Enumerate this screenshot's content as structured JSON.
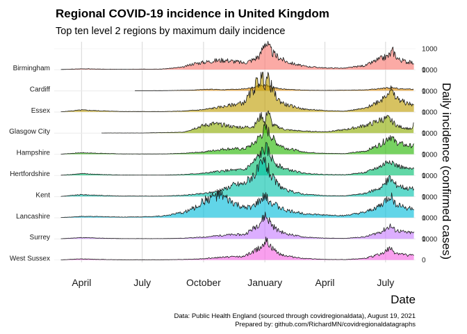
{
  "chart_data": {
    "type": "ridgeline",
    "title": "Regional COVID-19 incidence in United Kingdom",
    "subtitle": "Top ten level 2 regions by maximum daily incidence",
    "xlabel": "Date",
    "ylabel": "Daily incidence (confirmed cases)",
    "x_range": [
      "2020-02-20",
      "2021-08-15"
    ],
    "x_ticks": [
      {
        "date": "2020-04-01",
        "label": "April"
      },
      {
        "date": "2020-07-01",
        "label": "July"
      },
      {
        "date": "2020-10-01",
        "label": "October"
      },
      {
        "date": "2021-01-01",
        "label": "January"
      },
      {
        "date": "2021-04-01",
        "label": "April"
      },
      {
        "date": "2021-07-01",
        "label": "July"
      }
    ],
    "y_ticks": [
      0,
      1000
    ],
    "y_per_row_max": 1600,
    "grid": true,
    "series": [
      {
        "name": "Birmingham",
        "color": "#F8766D",
        "start": "2020-03-01",
        "points": [
          [
            "2020-03-01",
            5
          ],
          [
            "2020-04-05",
            40
          ],
          [
            "2020-05-01",
            20
          ],
          [
            "2020-06-01",
            15
          ],
          [
            "2020-07-01",
            20
          ],
          [
            "2020-08-01",
            30
          ],
          [
            "2020-09-01",
            120
          ],
          [
            "2020-09-15",
            280
          ],
          [
            "2020-10-01",
            350
          ],
          [
            "2020-10-15",
            420
          ],
          [
            "2020-11-01",
            460
          ],
          [
            "2020-11-15",
            400
          ],
          [
            "2020-12-01",
            320
          ],
          [
            "2020-12-15",
            480
          ],
          [
            "2020-12-25",
            700
          ],
          [
            "2021-01-01",
            1380
          ],
          [
            "2021-01-08",
            1000
          ],
          [
            "2021-01-15",
            720
          ],
          [
            "2021-02-01",
            400
          ],
          [
            "2021-02-15",
            260
          ],
          [
            "2021-03-01",
            160
          ],
          [
            "2021-04-01",
            80
          ],
          [
            "2021-05-01",
            70
          ],
          [
            "2021-06-01",
            200
          ],
          [
            "2021-06-20",
            480
          ],
          [
            "2021-07-05",
            650
          ],
          [
            "2021-07-12",
            900
          ],
          [
            "2021-07-20",
            500
          ],
          [
            "2021-08-01",
            380
          ],
          [
            "2021-08-13",
            320
          ]
        ]
      },
      {
        "name": "Cardiff",
        "color": "#E18A00",
        "start": "2020-06-20",
        "points": [
          [
            "2020-06-20",
            3
          ],
          [
            "2020-08-01",
            5
          ],
          [
            "2020-09-15",
            30
          ],
          [
            "2020-10-01",
            60
          ],
          [
            "2020-10-15",
            70
          ],
          [
            "2020-11-01",
            50
          ],
          [
            "2020-12-01",
            90
          ],
          [
            "2020-12-15",
            160
          ],
          [
            "2020-12-25",
            220
          ],
          [
            "2021-01-01",
            260
          ],
          [
            "2021-01-15",
            140
          ],
          [
            "2021-02-01",
            70
          ],
          [
            "2021-03-01",
            30
          ],
          [
            "2021-04-01",
            15
          ],
          [
            "2021-06-01",
            40
          ],
          [
            "2021-07-10",
            150
          ],
          [
            "2021-07-25",
            90
          ],
          [
            "2021-08-13",
            70
          ]
        ]
      },
      {
        "name": "Essex",
        "color": "#BE9C00",
        "start": "2020-03-01",
        "points": [
          [
            "2020-03-01",
            5
          ],
          [
            "2020-04-01",
            90
          ],
          [
            "2020-05-01",
            50
          ],
          [
            "2020-06-01",
            20
          ],
          [
            "2020-08-01",
            15
          ],
          [
            "2020-09-01",
            40
          ],
          [
            "2020-10-01",
            110
          ],
          [
            "2020-11-01",
            260
          ],
          [
            "2020-11-15",
            350
          ],
          [
            "2020-12-01",
            450
          ],
          [
            "2020-12-15",
            1100
          ],
          [
            "2020-12-22",
            1500
          ],
          [
            "2020-12-28",
            1700
          ],
          [
            "2021-01-01",
            1400
          ],
          [
            "2021-01-05",
            1700
          ],
          [
            "2021-01-12",
            1100
          ],
          [
            "2021-01-20",
            600
          ],
          [
            "2021-02-01",
            350
          ],
          [
            "2021-03-01",
            130
          ],
          [
            "2021-04-01",
            60
          ],
          [
            "2021-05-01",
            40
          ],
          [
            "2021-06-01",
            170
          ],
          [
            "2021-06-25",
            600
          ],
          [
            "2021-07-08",
            1100
          ],
          [
            "2021-07-15",
            700
          ],
          [
            "2021-08-01",
            420
          ],
          [
            "2021-08-13",
            330
          ]
        ]
      },
      {
        "name": "Glasgow City",
        "color": "#8CAB00",
        "start": "2020-05-01",
        "points": [
          [
            "2020-05-01",
            5
          ],
          [
            "2020-07-01",
            5
          ],
          [
            "2020-09-01",
            40
          ],
          [
            "2020-09-20",
            260
          ],
          [
            "2020-10-01",
            360
          ],
          [
            "2020-10-15",
            450
          ],
          [
            "2020-11-01",
            380
          ],
          [
            "2020-11-15",
            300
          ],
          [
            "2020-12-01",
            280
          ],
          [
            "2020-12-15",
            320
          ],
          [
            "2020-12-28",
            900
          ],
          [
            "2021-01-01",
            400
          ],
          [
            "2021-01-05",
            1200
          ],
          [
            "2021-01-12",
            400
          ],
          [
            "2021-02-01",
            160
          ],
          [
            "2021-03-01",
            90
          ],
          [
            "2021-04-01",
            60
          ],
          [
            "2021-05-01",
            160
          ],
          [
            "2021-05-25",
            320
          ],
          [
            "2021-06-10",
            450
          ],
          [
            "2021-06-25",
            650
          ],
          [
            "2021-07-05",
            700
          ],
          [
            "2021-07-20",
            320
          ],
          [
            "2021-08-10",
            180
          ],
          [
            "2021-08-13",
            550
          ]
        ]
      },
      {
        "name": "Hampshire",
        "color": "#24B700",
        "start": "2020-03-01",
        "points": [
          [
            "2020-03-01",
            5
          ],
          [
            "2020-04-01",
            70
          ],
          [
            "2020-05-01",
            40
          ],
          [
            "2020-06-01",
            15
          ],
          [
            "2020-08-01",
            15
          ],
          [
            "2020-09-01",
            40
          ],
          [
            "2020-10-01",
            110
          ],
          [
            "2020-11-01",
            250
          ],
          [
            "2020-11-15",
            260
          ],
          [
            "2020-12-01",
            250
          ],
          [
            "2020-12-15",
            500
          ],
          [
            "2020-12-28",
            1000
          ],
          [
            "2021-01-01",
            1250
          ],
          [
            "2021-01-05",
            1150
          ],
          [
            "2021-01-12",
            800
          ],
          [
            "2021-01-20",
            500
          ],
          [
            "2021-02-01",
            300
          ],
          [
            "2021-03-01",
            100
          ],
          [
            "2021-04-01",
            40
          ],
          [
            "2021-05-01",
            30
          ],
          [
            "2021-06-01",
            150
          ],
          [
            "2021-06-25",
            500
          ],
          [
            "2021-07-08",
            900
          ],
          [
            "2021-07-15",
            600
          ],
          [
            "2021-08-01",
            420
          ],
          [
            "2021-08-13",
            400
          ]
        ]
      },
      {
        "name": "Hertfordshire",
        "color": "#00BE70",
        "start": "2020-03-01",
        "points": [
          [
            "2020-03-01",
            5
          ],
          [
            "2020-04-01",
            80
          ],
          [
            "2020-05-01",
            40
          ],
          [
            "2020-06-01",
            15
          ],
          [
            "2020-08-01",
            15
          ],
          [
            "2020-09-01",
            40
          ],
          [
            "2020-10-01",
            100
          ],
          [
            "2020-11-01",
            220
          ],
          [
            "2020-11-15",
            250
          ],
          [
            "2020-12-01",
            260
          ],
          [
            "2020-12-15",
            620
          ],
          [
            "2020-12-25",
            1000
          ],
          [
            "2021-01-01",
            1300
          ],
          [
            "2021-01-05",
            1200
          ],
          [
            "2021-01-12",
            800
          ],
          [
            "2021-01-20",
            500
          ],
          [
            "2021-02-01",
            300
          ],
          [
            "2021-03-01",
            100
          ],
          [
            "2021-04-01",
            40
          ],
          [
            "2021-05-01",
            30
          ],
          [
            "2021-06-01",
            140
          ],
          [
            "2021-06-25",
            450
          ],
          [
            "2021-07-08",
            750
          ],
          [
            "2021-07-15",
            500
          ],
          [
            "2021-08-01",
            320
          ],
          [
            "2021-08-13",
            290
          ]
        ]
      },
      {
        "name": "Kent",
        "color": "#00C1AB",
        "start": "2020-03-01",
        "points": [
          [
            "2020-03-01",
            5
          ],
          [
            "2020-04-01",
            90
          ],
          [
            "2020-05-01",
            50
          ],
          [
            "2020-06-01",
            20
          ],
          [
            "2020-08-01",
            20
          ],
          [
            "2020-09-01",
            60
          ],
          [
            "2020-10-01",
            140
          ],
          [
            "2020-10-20",
            240
          ],
          [
            "2020-11-01",
            360
          ],
          [
            "2020-11-15",
            560
          ],
          [
            "2020-12-01",
            620
          ],
          [
            "2020-12-10",
            900
          ],
          [
            "2020-12-20",
            1200
          ],
          [
            "2020-12-28",
            1500
          ],
          [
            "2021-01-01",
            1700
          ],
          [
            "2021-01-06",
            1300
          ],
          [
            "2021-01-12",
            900
          ],
          [
            "2021-01-20",
            600
          ],
          [
            "2021-02-01",
            300
          ],
          [
            "2021-03-01",
            110
          ],
          [
            "2021-04-01",
            40
          ],
          [
            "2021-05-01",
            30
          ],
          [
            "2021-06-01",
            150
          ],
          [
            "2021-06-25",
            450
          ],
          [
            "2021-07-08",
            900
          ],
          [
            "2021-07-15",
            600
          ],
          [
            "2021-08-01",
            400
          ],
          [
            "2021-08-13",
            380
          ]
        ]
      },
      {
        "name": "Lancashire",
        "color": "#00BBDA",
        "start": "2020-03-01",
        "points": [
          [
            "2020-03-01",
            5
          ],
          [
            "2020-04-01",
            60
          ],
          [
            "2020-05-01",
            50
          ],
          [
            "2020-06-01",
            30
          ],
          [
            "2020-07-01",
            40
          ],
          [
            "2020-08-01",
            80
          ],
          [
            "2020-09-01",
            250
          ],
          [
            "2020-09-20",
            500
          ],
          [
            "2020-10-01",
            800
          ],
          [
            "2020-10-15",
            1000
          ],
          [
            "2020-10-25",
            1100
          ],
          [
            "2020-11-01",
            950
          ],
          [
            "2020-11-15",
            700
          ],
          [
            "2020-12-01",
            450
          ],
          [
            "2020-12-15",
            550
          ],
          [
            "2020-12-28",
            900
          ],
          [
            "2021-01-01",
            1000
          ],
          [
            "2021-01-08",
            800
          ],
          [
            "2021-01-20",
            550
          ],
          [
            "2021-02-01",
            350
          ],
          [
            "2021-03-01",
            200
          ],
          [
            "2021-04-01",
            120
          ],
          [
            "2021-05-01",
            100
          ],
          [
            "2021-06-01",
            250
          ],
          [
            "2021-06-25",
            600
          ],
          [
            "2021-07-08",
            1050
          ],
          [
            "2021-07-15",
            700
          ],
          [
            "2021-08-01",
            460
          ],
          [
            "2021-08-13",
            460
          ]
        ]
      },
      {
        "name": "Surrey",
        "color": "#C77CFF",
        "start": "2020-03-01",
        "points": [
          [
            "2020-03-01",
            5
          ],
          [
            "2020-04-01",
            60
          ],
          [
            "2020-05-01",
            30
          ],
          [
            "2020-06-01",
            10
          ],
          [
            "2020-08-01",
            10
          ],
          [
            "2020-09-01",
            30
          ],
          [
            "2020-10-01",
            80
          ],
          [
            "2020-11-01",
            180
          ],
          [
            "2020-11-15",
            200
          ],
          [
            "2020-12-01",
            200
          ],
          [
            "2020-12-15",
            500
          ],
          [
            "2020-12-28",
            900
          ],
          [
            "2021-01-01",
            1150
          ],
          [
            "2021-01-06",
            950
          ],
          [
            "2021-01-12",
            650
          ],
          [
            "2021-01-20",
            420
          ],
          [
            "2021-02-01",
            250
          ],
          [
            "2021-03-01",
            80
          ],
          [
            "2021-04-01",
            30
          ],
          [
            "2021-05-01",
            20
          ],
          [
            "2021-06-01",
            100
          ],
          [
            "2021-06-25",
            350
          ],
          [
            "2021-07-08",
            620
          ],
          [
            "2021-07-15",
            420
          ],
          [
            "2021-08-01",
            300
          ],
          [
            "2021-08-13",
            290
          ]
        ]
      },
      {
        "name": "West Sussex",
        "color": "#F564E3",
        "start": "2020-03-01",
        "points": [
          [
            "2020-03-01",
            5
          ],
          [
            "2020-04-01",
            50
          ],
          [
            "2020-05-01",
            25
          ],
          [
            "2020-06-01",
            10
          ],
          [
            "2020-08-01",
            10
          ],
          [
            "2020-09-01",
            25
          ],
          [
            "2020-10-01",
            60
          ],
          [
            "2020-11-01",
            140
          ],
          [
            "2020-11-15",
            160
          ],
          [
            "2020-12-01",
            170
          ],
          [
            "2020-12-15",
            400
          ],
          [
            "2020-12-28",
            700
          ],
          [
            "2021-01-01",
            900
          ],
          [
            "2021-01-06",
            800
          ],
          [
            "2021-01-12",
            550
          ],
          [
            "2021-01-20",
            350
          ],
          [
            "2021-02-01",
            200
          ],
          [
            "2021-03-01",
            70
          ],
          [
            "2021-04-01",
            25
          ],
          [
            "2021-05-01",
            20
          ],
          [
            "2021-06-01",
            80
          ],
          [
            "2021-06-25",
            300
          ],
          [
            "2021-07-08",
            550
          ],
          [
            "2021-07-15",
            350
          ],
          [
            "2021-08-01",
            230
          ],
          [
            "2021-08-13",
            220
          ]
        ]
      }
    ],
    "caption_lines": [
      "Data: Public Health England (sourced through covidregionaldata), August 19, 2021",
      "Prepared by: github.com/RichardMN/covidregionaldatagraphs"
    ]
  }
}
